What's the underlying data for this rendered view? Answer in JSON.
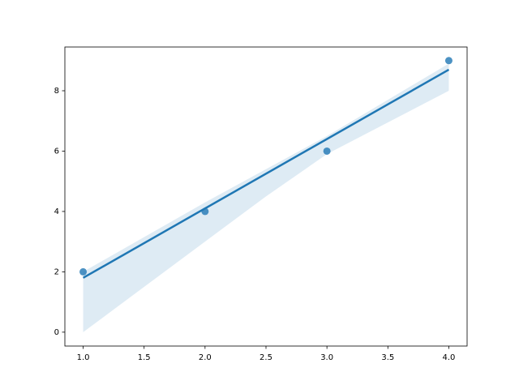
{
  "chart_data": {
    "type": "scatter",
    "x": [
      1,
      2,
      3,
      4
    ],
    "values": [
      2,
      4,
      6,
      9
    ],
    "color": "#1f77b4",
    "regression": {
      "x": [
        1,
        4
      ],
      "values": [
        1.8,
        8.7
      ]
    },
    "ci": {
      "x": [
        1,
        2,
        2.5,
        3,
        4
      ],
      "lower": [
        0,
        3.0,
        4.5,
        5.9,
        8.0
      ],
      "upper": [
        2.0,
        4.3,
        5.4,
        6.5,
        8.9
      ]
    },
    "xlim": [
      0.85,
      4.15
    ],
    "ylim": [
      -0.46,
      9.45
    ],
    "xticks": [
      {
        "value": 1,
        "label": "1.0"
      },
      {
        "value": 1.5,
        "label": "1.5"
      },
      {
        "value": 2,
        "label": "2.0"
      },
      {
        "value": 2.5,
        "label": "2.5"
      },
      {
        "value": 3,
        "label": "3.0"
      },
      {
        "value": 3.5,
        "label": "3.5"
      },
      {
        "value": 4,
        "label": "4.0"
      }
    ],
    "yticks": [
      0,
      2,
      4,
      6,
      8
    ],
    "grid": false
  }
}
